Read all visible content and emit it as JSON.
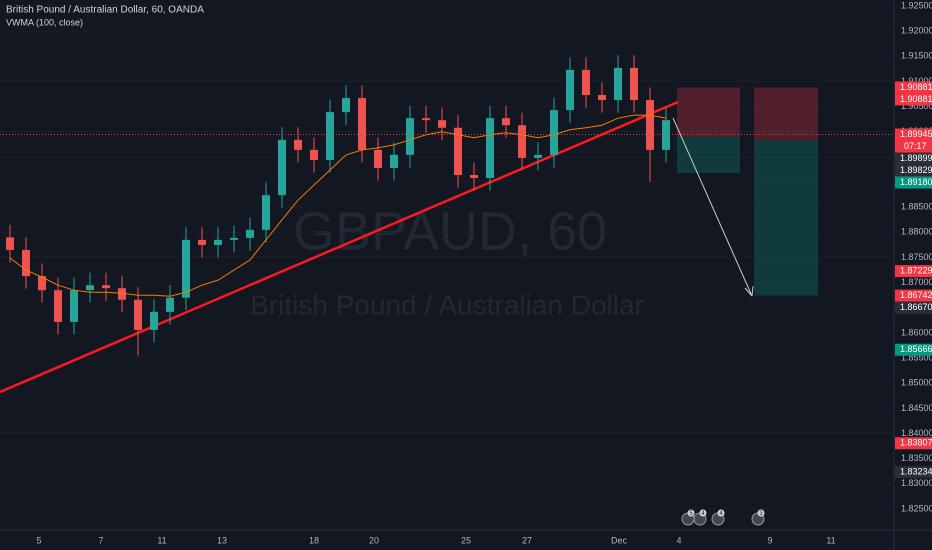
{
  "chart_data": {
    "type": "candlestick",
    "title": "British Pound / Australian Dollar, 60, OANDA",
    "watermark": "GBPAUD, 60",
    "watermark_subtitle": "British Pound / Australian Dollar",
    "colors": {
      "up": "#26a69a",
      "down": "#ef5350"
    },
    "open": [
      1.879,
      1.8765,
      1.8713,
      1.8685,
      1.8622,
      1.8685,
      1.8695,
      1.8689,
      1.8666,
      1.8606,
      1.8642,
      1.867,
      1.8785,
      1.8775,
      1.8785,
      1.8789,
      1.8805,
      1.8874,
      1.8984,
      1.8964,
      1.8944,
      1.9039,
      1.9067,
      1.8964,
      1.8928,
      1.8954,
      1.9027,
      1.9023,
      1.9008,
      1.8914,
      1.8908,
      1.9027,
      1.9013,
      1.8948,
      1.8954,
      1.9043,
      1.9123,
      1.9073,
      1.9063,
      1.9127,
      1.9063,
      1.8964
    ],
    "high": [
      1.8815,
      1.879,
      1.8738,
      1.871,
      1.871,
      1.872,
      1.872,
      1.8714,
      1.8691,
      1.8667,
      1.8695,
      1.881,
      1.881,
      1.881,
      1.8814,
      1.883,
      1.8899,
      1.9009,
      1.9009,
      1.8989,
      1.9064,
      1.9092,
      1.9092,
      1.8989,
      1.8979,
      1.9052,
      1.9052,
      1.9048,
      1.9033,
      1.8939,
      1.9052,
      1.9052,
      1.9038,
      1.8979,
      1.9068,
      1.9148,
      1.9148,
      1.9098,
      1.9152,
      1.9152,
      1.9088,
      1.9048
    ],
    "low": [
      1.874,
      1.8688,
      1.866,
      1.8597,
      1.8597,
      1.866,
      1.8664,
      1.8641,
      1.8555,
      1.8581,
      1.8617,
      1.8645,
      1.875,
      1.875,
      1.876,
      1.8764,
      1.878,
      1.8849,
      1.8939,
      1.8919,
      1.8919,
      1.9014,
      1.8939,
      1.8903,
      1.8903,
      1.8929,
      1.8998,
      1.8983,
      1.8889,
      1.8883,
      1.8883,
      1.8988,
      1.8923,
      1.8923,
      1.8929,
      1.9018,
      1.9048,
      1.9038,
      1.9038,
      1.9038,
      1.89,
      1.8939
    ],
    "close": [
      1.8765,
      1.8713,
      1.8685,
      1.8622,
      1.8685,
      1.8695,
      1.8689,
      1.8666,
      1.8606,
      1.8642,
      1.867,
      1.8785,
      1.8775,
      1.8785,
      1.8789,
      1.8805,
      1.8874,
      1.8984,
      1.8964,
      1.8944,
      1.9039,
      1.9067,
      1.8964,
      1.8928,
      1.8954,
      1.9027,
      1.9023,
      1.9008,
      1.8914,
      1.8908,
      1.9027,
      1.9013,
      1.8948,
      1.8954,
      1.9043,
      1.9123,
      1.9073,
      1.9063,
      1.9127,
      1.9063,
      1.8964,
      1.9023
    ],
    "indicator": {
      "name": "VWMA (100, close)",
      "color": "#f57c00",
      "values": [
        1.8749,
        1.8725,
        1.8711,
        1.8695,
        1.8685,
        1.8681,
        1.8681,
        1.8679,
        1.8675,
        1.8675,
        1.8673,
        1.8681,
        1.8695,
        1.8705,
        1.8725,
        1.8745,
        1.8785,
        1.8825,
        1.8864,
        1.8894,
        1.8924,
        1.8954,
        1.8964,
        1.8968,
        1.8974,
        1.8984,
        1.8994,
        1.9,
        1.8994,
        1.8988,
        1.8994,
        1.8998,
        1.8994,
        1.8988,
        1.8994,
        1.9004,
        1.9008,
        1.9013,
        1.9027,
        1.9033,
        1.9033,
        1.9027
      ]
    },
    "ylim": [
      1.825,
      1.925
    ],
    "yticks": [
      {
        "value": 1.825,
        "label": "1.82500"
      },
      {
        "value": 1.83,
        "label": "1.83000"
      },
      {
        "value": 1.835,
        "label": "1.83500"
      },
      {
        "value": 1.84,
        "label": "1.84000"
      },
      {
        "value": 1.845,
        "label": "1.84500"
      },
      {
        "value": 1.85,
        "label": "1.85000"
      },
      {
        "value": 1.855,
        "label": "1.85500"
      },
      {
        "value": 1.86,
        "label": "1.86000"
      },
      {
        "value": 1.865,
        "label": "1.86500"
      },
      {
        "value": 1.87,
        "label": "1.87000"
      },
      {
        "value": 1.875,
        "label": "1.87500"
      },
      {
        "value": 1.88,
        "label": "1.88000"
      },
      {
        "value": 1.885,
        "label": "1.88500"
      },
      {
        "value": 1.89,
        "label": "1.89000"
      },
      {
        "value": 1.895,
        "label": "1.89500"
      },
      {
        "value": 1.9,
        "label": "1.90000"
      },
      {
        "value": 1.905,
        "label": "1.90500"
      },
      {
        "value": 1.91,
        "label": "1.91000"
      },
      {
        "value": 1.915,
        "label": "1.91500"
      },
      {
        "value": 1.92,
        "label": "1.92000"
      },
      {
        "value": 1.925,
        "label": "1.92500"
      }
    ],
    "x_labels": [
      5,
      7,
      11,
      13,
      18,
      20,
      25,
      27,
      "Dec",
      4,
      9,
      11
    ],
    "price_labels": [
      {
        "value": 1.90881,
        "color": "#f23645"
      },
      {
        "value": 1.90881,
        "color": "#f23645"
      },
      {
        "value": 1.89945,
        "color": "#f23645"
      },
      {
        "value": 1.89899,
        "color": "#2a2e39"
      },
      {
        "value": 1.89829,
        "color": "#2a2e39"
      },
      {
        "value": 1.8918,
        "label": "1.89180",
        "color": "#089981"
      },
      {
        "value": 1.87229,
        "color": "#f23645"
      },
      {
        "value": 1.86742,
        "color": "#f23645"
      },
      {
        "value": 1.8667,
        "label": "1.86670",
        "color": "#2a2e39"
      },
      {
        "value": 1.85666,
        "color": "#089981"
      },
      {
        "value": 1.83807,
        "color": "#f23645"
      },
      {
        "value": 1.83234,
        "color": "#2a2e39"
      }
    ],
    "countdown": "07:17",
    "events": [
      5,
      4,
      4,
      3
    ]
  }
}
